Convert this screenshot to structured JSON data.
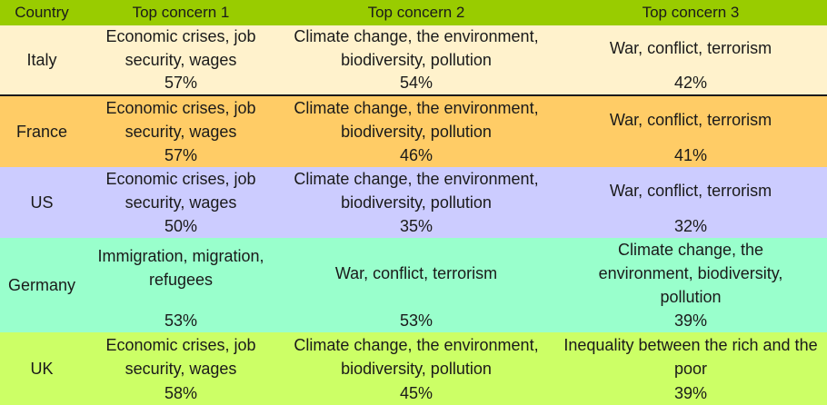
{
  "chart_data": {
    "type": "table",
    "columns": [
      "Country",
      "Top concern 1",
      "Top concern 2",
      "Top concern 3"
    ],
    "rows": [
      {
        "country": "Italy",
        "color": "#fff2cc",
        "concerns": [
          {
            "label": "Economic crises, job security, wages",
            "pct": "57%"
          },
          {
            "label": "Climate change, the environment, biodiversity, pollution",
            "pct": "54%"
          },
          {
            "label": "War, conflict, terrorism",
            "pct": "42%"
          }
        ]
      },
      {
        "country": "France",
        "color": "#ffcc66",
        "concerns": [
          {
            "label": "Economic crises, job security, wages",
            "pct": "57%"
          },
          {
            "label": "Climate change, the environment, biodiversity, pollution",
            "pct": "46%"
          },
          {
            "label": "War, conflict, terrorism",
            "pct": "41%"
          }
        ]
      },
      {
        "country": "US",
        "color": "#ccccff",
        "concerns": [
          {
            "label": "Economic crises, job security, wages",
            "pct": "50%"
          },
          {
            "label": "Climate change, the environment, biodiversity, pollution",
            "pct": "35%"
          },
          {
            "label": "War, conflict, terrorism",
            "pct": "32%"
          }
        ]
      },
      {
        "country": "Germany",
        "color": "#99ffcc",
        "concerns": [
          {
            "label": "Immigration, migration, refugees",
            "pct": "53%"
          },
          {
            "label": "War, conflict, terrorism",
            "pct": "53%"
          },
          {
            "label": "Climate change, the environment, biodiversity, pollution",
            "pct": "39%"
          }
        ]
      },
      {
        "country": "UK",
        "color": "#ccff66",
        "concerns": [
          {
            "label": "Economic crises, job security, wages",
            "pct": "58%"
          },
          {
            "label": "Climate change, the environment, biodiversity, pollution",
            "pct": "45%"
          },
          {
            "label": "Inequality between the rich and the poor",
            "pct": "39%"
          }
        ]
      }
    ],
    "header_color": "#99cc00"
  }
}
